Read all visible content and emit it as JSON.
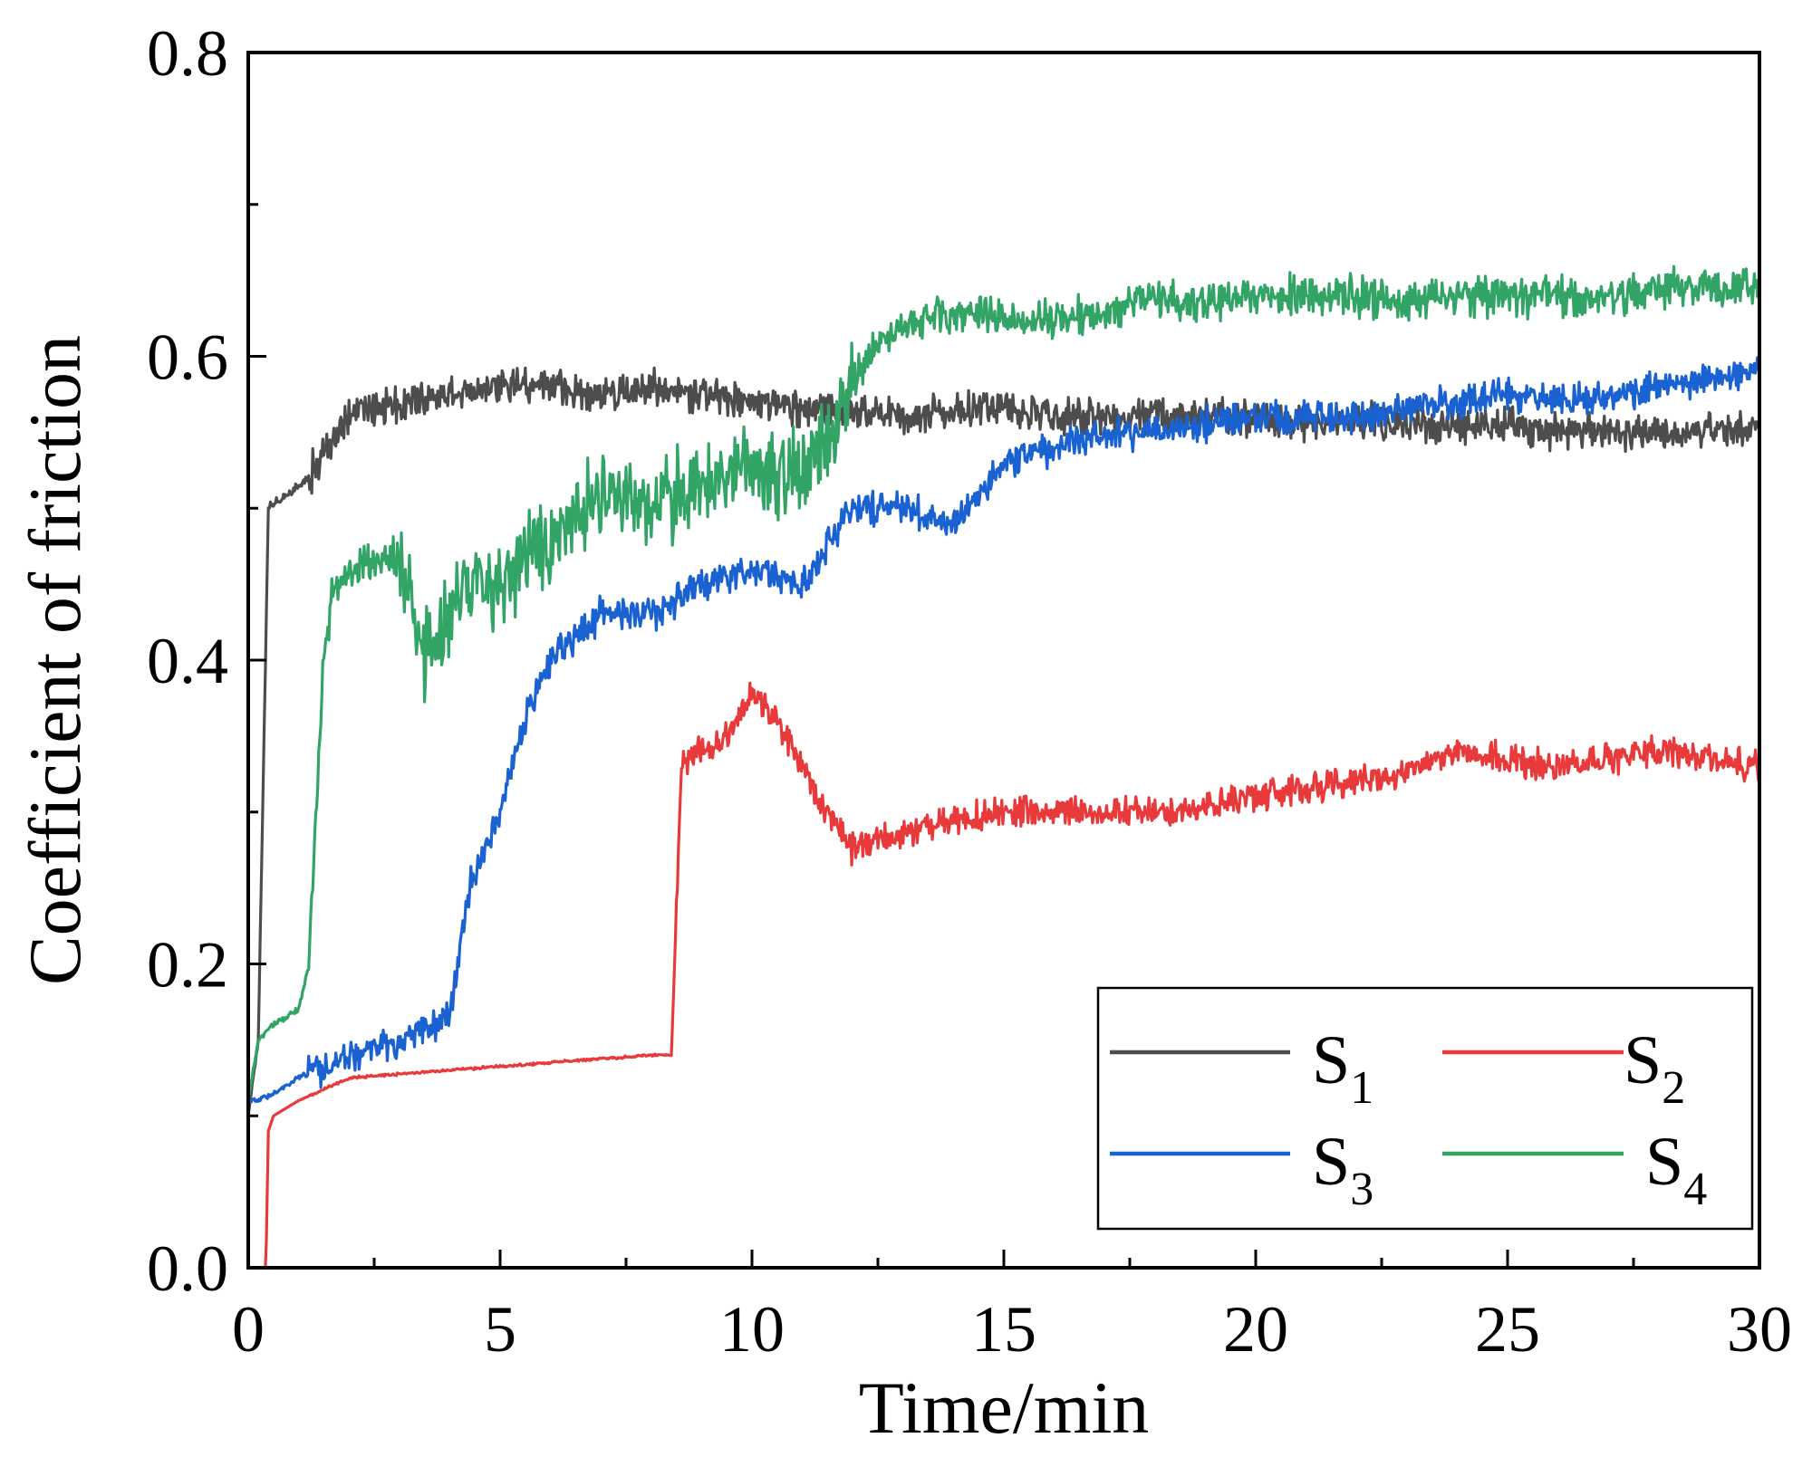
{
  "chart_data": {
    "type": "line",
    "xlabel": "Time/min",
    "ylabel": "Coefficient of friction",
    "xlim": [
      0,
      30
    ],
    "ylim": [
      0,
      0.8
    ],
    "x_ticks": [
      0,
      5,
      10,
      15,
      20,
      25,
      30
    ],
    "x_tick_labels": [
      "0",
      "5",
      "10",
      "15",
      "20",
      "25",
      "30"
    ],
    "y_ticks": [
      0,
      0.2,
      0.4,
      0.6,
      0.8
    ],
    "y_tick_labels": [
      "0.0",
      "0.2",
      "0.4",
      "0.6",
      "0.8"
    ],
    "grid": false,
    "legend_position": "bottom-right",
    "series": [
      {
        "name": "S1",
        "label_main": "S",
        "label_sub": "1",
        "color": "#4d4d4d",
        "x": [
          0,
          0.2,
          0.4,
          0.8,
          1.2,
          2,
          3,
          4,
          5,
          6,
          7,
          8,
          9,
          10,
          11,
          12,
          13,
          14,
          15,
          16,
          17,
          18,
          19,
          20,
          21,
          22,
          23,
          24,
          25,
          26,
          27,
          28,
          29,
          30
        ],
        "y": [
          0.1,
          0.15,
          0.5,
          0.51,
          0.52,
          0.56,
          0.57,
          0.575,
          0.58,
          0.58,
          0.575,
          0.58,
          0.575,
          0.57,
          0.565,
          0.565,
          0.56,
          0.565,
          0.565,
          0.56,
          0.56,
          0.56,
          0.56,
          0.56,
          0.555,
          0.56,
          0.555,
          0.555,
          0.555,
          0.55,
          0.55,
          0.55,
          0.55,
          0.555
        ],
        "noise": 0.014
      },
      {
        "name": "S2",
        "label_main": "S",
        "label_sub": "2",
        "color": "#e8393b",
        "x": [
          0,
          0.35,
          0.4,
          0.5,
          1,
          2,
          4,
          6,
          8,
          8.4,
          8.6,
          9,
          9.5,
          10,
          10.5,
          11,
          11.5,
          12,
          12.5,
          13,
          14,
          15,
          16,
          17,
          18,
          19,
          20,
          21,
          22,
          23,
          24,
          25,
          26,
          27,
          28,
          29,
          30
        ],
        "y": [
          0,
          0,
          0.09,
          0.1,
          0.11,
          0.125,
          0.13,
          0.135,
          0.14,
          0.14,
          0.33,
          0.34,
          0.35,
          0.38,
          0.36,
          0.33,
          0.3,
          0.275,
          0.28,
          0.285,
          0.295,
          0.3,
          0.3,
          0.3,
          0.3,
          0.305,
          0.31,
          0.315,
          0.32,
          0.325,
          0.34,
          0.335,
          0.33,
          0.335,
          0.34,
          0.335,
          0.33
        ],
        "noise": 0.012
      },
      {
        "name": "S3",
        "label_main": "S",
        "label_sub": "3",
        "color": "#1a62d1",
        "x": [
          0,
          0.2,
          0.5,
          1,
          2,
          3,
          4,
          4.4,
          5,
          5.5,
          6,
          7,
          8,
          9,
          10,
          11,
          12,
          13,
          14,
          15,
          16,
          17,
          18,
          19,
          20,
          21,
          22,
          23,
          24,
          25,
          26,
          27,
          28,
          29,
          30
        ],
        "y": [
          0.11,
          0.11,
          0.115,
          0.125,
          0.14,
          0.15,
          0.165,
          0.25,
          0.3,
          0.36,
          0.4,
          0.43,
          0.43,
          0.45,
          0.46,
          0.45,
          0.5,
          0.5,
          0.49,
          0.53,
          0.54,
          0.55,
          0.55,
          0.555,
          0.56,
          0.56,
          0.56,
          0.565,
          0.57,
          0.575,
          0.57,
          0.575,
          0.58,
          0.585,
          0.59
        ],
        "noise": 0.013
      },
      {
        "name": "S4",
        "label_main": "S",
        "label_sub": "4",
        "color": "#32a466",
        "x": [
          0,
          0.2,
          0.5,
          1,
          1.2,
          1.5,
          1.7,
          2,
          3,
          3.5,
          4,
          4.5,
          5,
          5.5,
          6,
          7,
          8,
          9,
          10,
          11,
          12,
          12.5,
          13,
          14,
          15,
          16,
          17,
          18,
          19,
          20,
          21,
          22,
          23,
          24,
          25,
          26,
          27,
          28,
          29,
          30
        ],
        "y": [
          0.11,
          0.15,
          0.16,
          0.17,
          0.2,
          0.4,
          0.45,
          0.46,
          0.47,
          0.4,
          0.43,
          0.46,
          0.44,
          0.47,
          0.48,
          0.51,
          0.5,
          0.52,
          0.53,
          0.52,
          0.58,
          0.61,
          0.62,
          0.63,
          0.625,
          0.625,
          0.63,
          0.64,
          0.635,
          0.64,
          0.64,
          0.64,
          0.635,
          0.64,
          0.64,
          0.64,
          0.64,
          0.645,
          0.645,
          0.645
        ],
        "noise": 0.016
      }
    ]
  }
}
